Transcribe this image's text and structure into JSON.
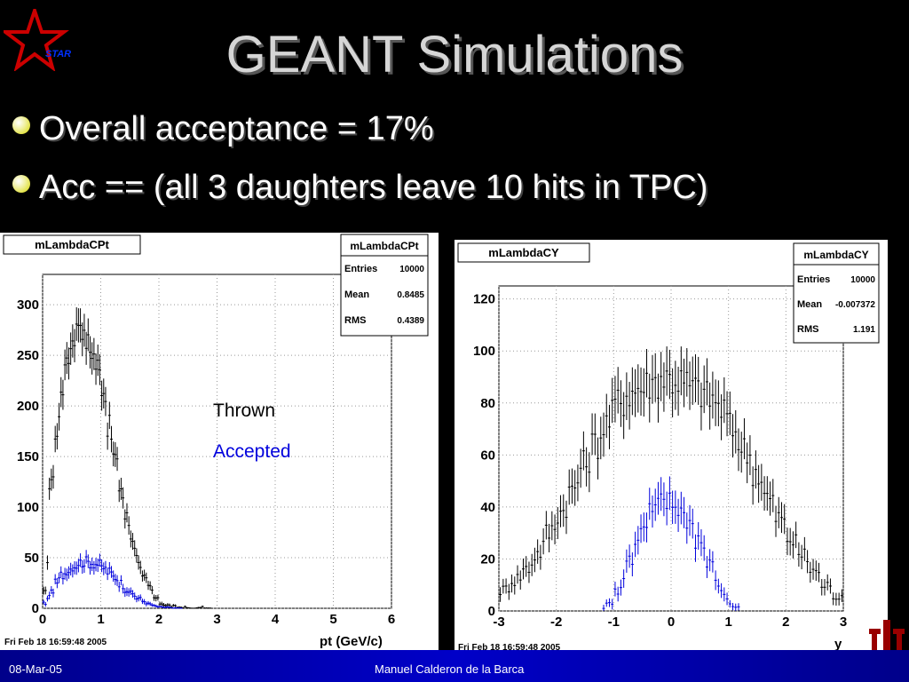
{
  "title": "GEANT Simulations",
  "logo": {
    "text": "STAR",
    "color": "#e00000"
  },
  "bullets": [
    {
      "text": "Overall acceptance = 17%"
    },
    {
      "text": "Acc == (all 3 daughters leave 10 hits in TPC)"
    }
  ],
  "footer": {
    "date": "08-Mar-05",
    "author": "Manuel Calderon de la Barca"
  },
  "colors": {
    "thrown": "#000000",
    "accepted": "#0000dd",
    "footer_bar": "#0000c8",
    "logo_red": "#cc0000"
  },
  "legend": {
    "thrown": "Thrown",
    "accepted": "Accepted"
  },
  "chart_data": [
    {
      "type": "histogram",
      "title": "mLambdaCPt",
      "stats": {
        "name": "mLambdaCPt",
        "rows": [
          {
            "label": "Entries",
            "value": "10000"
          },
          {
            "label": "Mean",
            "value": "0.8485"
          },
          {
            "label": "RMS",
            "value": "0.4389"
          }
        ]
      },
      "xlabel": "pt (GeV/c)",
      "xlim": [
        0,
        6
      ],
      "ylim": [
        0,
        330
      ],
      "xticks": [
        0,
        1,
        2,
        3,
        4,
        5,
        6
      ],
      "yticks": [
        0,
        50,
        100,
        150,
        200,
        250,
        300
      ],
      "timestamp": "Fri Feb 18 16:59:48 2005",
      "grid": true,
      "series": [
        {
          "name": "Thrown",
          "x": [
            0.05,
            0.15,
            0.25,
            0.35,
            0.45,
            0.55,
            0.65,
            0.75,
            0.85,
            0.95,
            1.05,
            1.15,
            1.25,
            1.35,
            1.45,
            1.55,
            1.65,
            1.75,
            1.85,
            1.95,
            2.05,
            2.15,
            2.25,
            2.35,
            2.45,
            2.55,
            2.65,
            2.75,
            2.85
          ],
          "y": [
            15,
            120,
            170,
            220,
            250,
            270,
            285,
            265,
            255,
            240,
            220,
            180,
            150,
            120,
            90,
            70,
            50,
            30,
            20,
            10,
            5,
            3,
            2,
            1,
            1,
            0,
            0,
            1,
            0
          ]
        },
        {
          "name": "Accepted",
          "x": [
            0.05,
            0.15,
            0.25,
            0.35,
            0.45,
            0.55,
            0.65,
            0.75,
            0.85,
            0.95,
            1.05,
            1.15,
            1.25,
            1.35,
            1.45,
            1.55,
            1.65,
            1.75,
            1.85,
            1.95,
            2.05,
            2.15,
            2.25,
            2.35
          ],
          "y": [
            5,
            15,
            25,
            33,
            38,
            42,
            45,
            46,
            45,
            44,
            40,
            36,
            31,
            25,
            19,
            14,
            10,
            7,
            4,
            2,
            1,
            1,
            0,
            0
          ]
        }
      ]
    },
    {
      "type": "histogram",
      "title": "mLambdaCY",
      "stats": {
        "name": "mLambdaCY",
        "rows": [
          {
            "label": "Entries",
            "value": "10000"
          },
          {
            "label": "Mean",
            "value": "-0.007372"
          },
          {
            "label": "RMS",
            "value": "1.191"
          }
        ]
      },
      "xlabel": "y",
      "xlim": [
        -3,
        3
      ],
      "ylim": [
        0,
        125
      ],
      "xticks": [
        -3,
        -2,
        -1,
        0,
        1,
        2,
        3
      ],
      "yticks": [
        0,
        20,
        40,
        60,
        80,
        100,
        120
      ],
      "timestamp": "Fri Feb 18 16:59:48 2005",
      "grid": true,
      "series": [
        {
          "name": "Thrown",
          "x": [
            -2.9,
            -2.7,
            -2.5,
            -2.3,
            -2.1,
            -1.9,
            -1.7,
            -1.5,
            -1.3,
            -1.1,
            -0.9,
            -0.7,
            -0.5,
            -0.3,
            -0.1,
            0.1,
            0.3,
            0.5,
            0.7,
            0.9,
            1.1,
            1.3,
            1.5,
            1.7,
            1.9,
            2.1,
            2.3,
            2.5,
            2.7,
            2.9
          ],
          "y": [
            8,
            12,
            16,
            22,
            30,
            38,
            46,
            56,
            64,
            72,
            80,
            84,
            86,
            88,
            90,
            89,
            87,
            85,
            82,
            78,
            70,
            62,
            54,
            44,
            36,
            28,
            22,
            16,
            10,
            6
          ]
        },
        {
          "name": "Accepted",
          "x": [
            -1.1,
            -0.9,
            -0.7,
            -0.5,
            -0.3,
            -0.1,
            0.1,
            0.3,
            0.5,
            0.7,
            0.9,
            1.1
          ],
          "y": [
            2,
            8,
            20,
            30,
            38,
            42,
            41,
            36,
            28,
            18,
            8,
            2
          ]
        }
      ]
    }
  ]
}
